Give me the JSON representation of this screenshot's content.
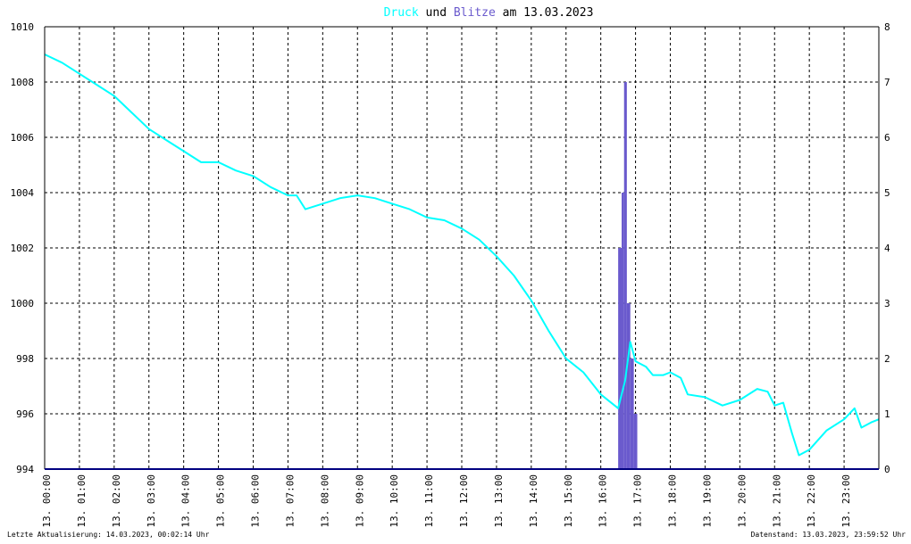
{
  "title": {
    "part1": "Druck",
    "part2": " und ",
    "part3": "Blitze",
    "part4": " am 13.03.2023"
  },
  "footer": {
    "left": "Letzte Aktualisierung: 14.03.2023, 00:02:14 Uhr",
    "right": "Datenstand: 13.03.2023, 23:59:52 Uhr"
  },
  "colors": {
    "pressure": "#00ffff",
    "lightning": "#6a5acd",
    "baseline": "#000080",
    "grid": "#000000"
  },
  "chart_data": {
    "type": "line",
    "title": "Druck und Blitze am 13.03.2023",
    "x_ticks": [
      "13. 00:00",
      "13. 01:00",
      "13. 02:00",
      "13. 03:00",
      "13. 04:00",
      "13. 05:00",
      "13. 06:00",
      "13. 07:00",
      "13. 08:00",
      "13. 09:00",
      "13. 10:00",
      "13. 11:00",
      "13. 12:00",
      "13. 13:00",
      "13. 14:00",
      "13. 15:00",
      "13. 16:00",
      "13. 17:00",
      "13. 18:00",
      "13. 19:00",
      "13. 20:00",
      "13. 21:00",
      "13. 22:00",
      "13. 23:00"
    ],
    "y_left_ticks": [
      "994",
      "996",
      "998",
      "1000",
      "1002",
      "1004",
      "1006",
      "1008",
      "1010"
    ],
    "y_right_ticks": [
      "0",
      "1",
      "2",
      "3",
      "4",
      "5",
      "6",
      "7",
      "8"
    ],
    "ylim_left": [
      994,
      1010
    ],
    "ylim_right": [
      0,
      8
    ],
    "xlim_hours": [
      0,
      24
    ],
    "grid": true,
    "series": [
      {
        "name": "Druck",
        "axis": "left",
        "x_hours": [
          0,
          0.5,
          1,
          1.5,
          2,
          2.5,
          3,
          3.5,
          4,
          4.5,
          5,
          5.5,
          6,
          6.5,
          7,
          7.25,
          7.5,
          8,
          8.5,
          9,
          9.5,
          10,
          10.5,
          11,
          11.5,
          12,
          12.5,
          13,
          13.5,
          14,
          14.5,
          15,
          15.5,
          16,
          16.5,
          16.7,
          16.85,
          17,
          17.3,
          17.5,
          17.8,
          18,
          18.3,
          18.5,
          19,
          19.5,
          20,
          20.5,
          20.8,
          21,
          21.25,
          21.5,
          21.7,
          22,
          22.5,
          23,
          23.3,
          23.5,
          23.8,
          24
        ],
        "values": [
          1009.0,
          1008.7,
          1008.3,
          1007.9,
          1007.5,
          1006.9,
          1006.3,
          1005.9,
          1005.5,
          1005.1,
          1005.1,
          1004.8,
          1004.6,
          1004.2,
          1003.9,
          1003.9,
          1003.4,
          1003.6,
          1003.8,
          1003.9,
          1003.8,
          1003.6,
          1003.4,
          1003.1,
          1003.0,
          1002.7,
          1002.3,
          1001.7,
          1001.0,
          1000.1,
          999.0,
          998.0,
          997.5,
          996.7,
          996.2,
          997.2,
          998.6,
          997.9,
          997.7,
          997.4,
          997.4,
          997.5,
          997.3,
          996.7,
          996.6,
          996.3,
          996.5,
          996.9,
          996.8,
          996.3,
          996.4,
          995.3,
          994.5,
          994.7,
          995.4,
          995.8,
          996.2,
          995.5,
          995.7,
          995.8
        ]
      },
      {
        "name": "Blitze",
        "axis": "right",
        "kind": "bar",
        "bars": [
          {
            "start_h": 16.5,
            "end_h": 16.6,
            "value": 4
          },
          {
            "start_h": 16.6,
            "end_h": 16.67,
            "value": 5
          },
          {
            "start_h": 16.67,
            "end_h": 16.75,
            "value": 7
          },
          {
            "start_h": 16.75,
            "end_h": 16.85,
            "value": 3
          },
          {
            "start_h": 16.85,
            "end_h": 16.95,
            "value": 2
          },
          {
            "start_h": 16.95,
            "end_h": 17.05,
            "value": 1
          }
        ]
      }
    ]
  }
}
